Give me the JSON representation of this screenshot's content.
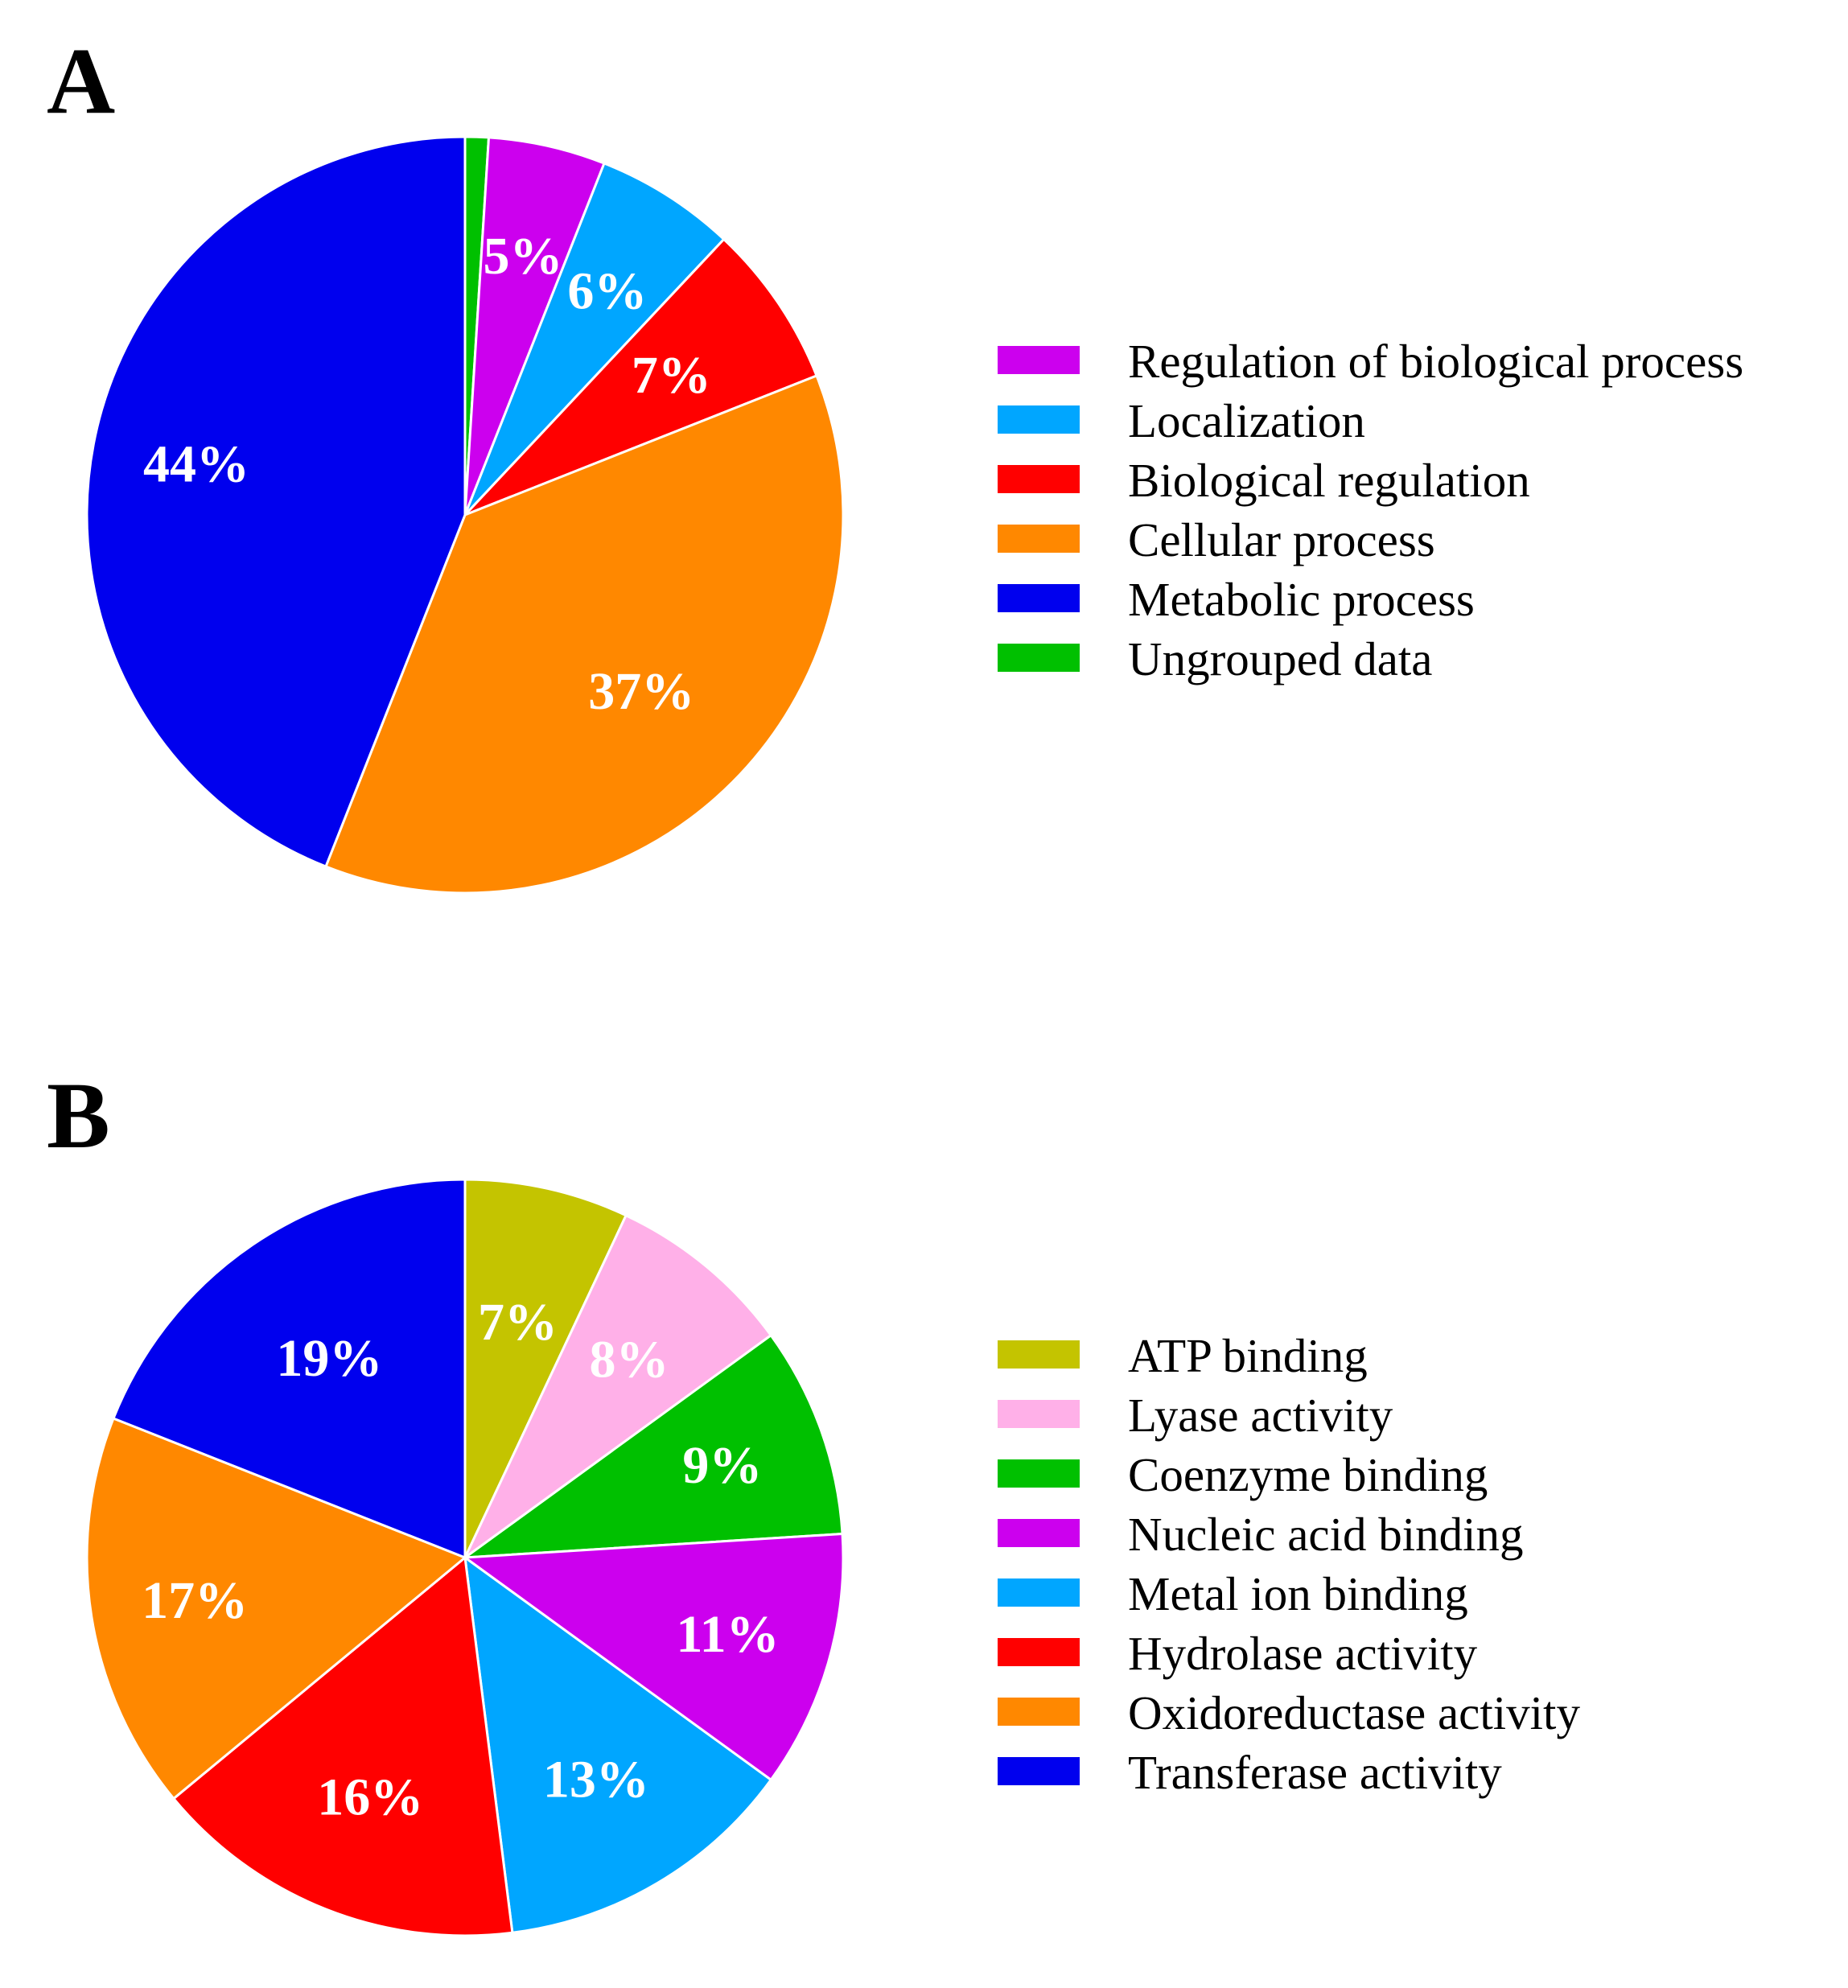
{
  "chart_data": [
    {
      "type": "pie",
      "panel_label": "A",
      "start_angle": "12 o'clock, clockwise",
      "slices": [
        {
          "label": "Ungrouped data",
          "value": 1,
          "display": "1%",
          "color": "#00C000"
        },
        {
          "label": "Regulation of biological process",
          "value": 5,
          "display": "5%",
          "color": "#CC00EE"
        },
        {
          "label": "Localization",
          "value": 6,
          "display": "6%",
          "color": "#00A6FF"
        },
        {
          "label": "Biological regulation",
          "value": 7,
          "display": "7%",
          "color": "#FF0000"
        },
        {
          "label": "Cellular process",
          "value": 37,
          "display": "37%",
          "color": "#FF8800"
        },
        {
          "label": "Metabolic process",
          "value": 44,
          "display": "44%",
          "color": "#0000EE"
        }
      ],
      "legend": [
        {
          "label": "Regulation of biological process",
          "color": "#CC00EE"
        },
        {
          "label": "Localization",
          "color": "#00A6FF"
        },
        {
          "label": "Biological regulation",
          "color": "#FF0000"
        },
        {
          "label": "Cellular process",
          "color": "#FF8800"
        },
        {
          "label": "Metabolic process",
          "color": "#0000EE"
        },
        {
          "label": "Ungrouped data",
          "color": "#00C000"
        }
      ],
      "legend_position": "right"
    },
    {
      "type": "pie",
      "panel_label": "B",
      "start_angle": "12 o'clock, clockwise",
      "slices": [
        {
          "label": "ATP binding",
          "value": 7,
          "display": "7%",
          "color": "#C4C400"
        },
        {
          "label": "Lyase activity",
          "value": 8,
          "display": "8%",
          "color": "#FFB0E8"
        },
        {
          "label": "Coenzyme binding",
          "value": 9,
          "display": "9%",
          "color": "#00C000"
        },
        {
          "label": "Nucleic acid binding",
          "value": 11,
          "display": "11%",
          "color": "#CC00EE"
        },
        {
          "label": "Metal ion binding",
          "value": 13,
          "display": "13%",
          "color": "#00A6FF"
        },
        {
          "label": "Hydrolase activity",
          "value": 16,
          "display": "16%",
          "color": "#FF0000"
        },
        {
          "label": "Oxidoreductase activity",
          "value": 17,
          "display": "17%",
          "color": "#FF8800"
        },
        {
          "label": "Transferase activity",
          "value": 19,
          "display": "19%",
          "color": "#0000EE"
        }
      ],
      "legend": [
        {
          "label": "ATP binding",
          "color": "#C4C400"
        },
        {
          "label": "Lyase activity",
          "color": "#FFB0E8"
        },
        {
          "label": "Coenzyme binding",
          "color": "#00C000"
        },
        {
          "label": "Nucleic acid binding",
          "color": "#CC00EE"
        },
        {
          "label": "Metal ion binding",
          "color": "#00A6FF"
        },
        {
          "label": "Hydrolase activity",
          "color": "#FF0000"
        },
        {
          "label": "Oxidoreductase activity",
          "color": "#FF8800"
        },
        {
          "label": "Transferase activity",
          "color": "#0000EE"
        }
      ],
      "legend_position": "right"
    }
  ]
}
